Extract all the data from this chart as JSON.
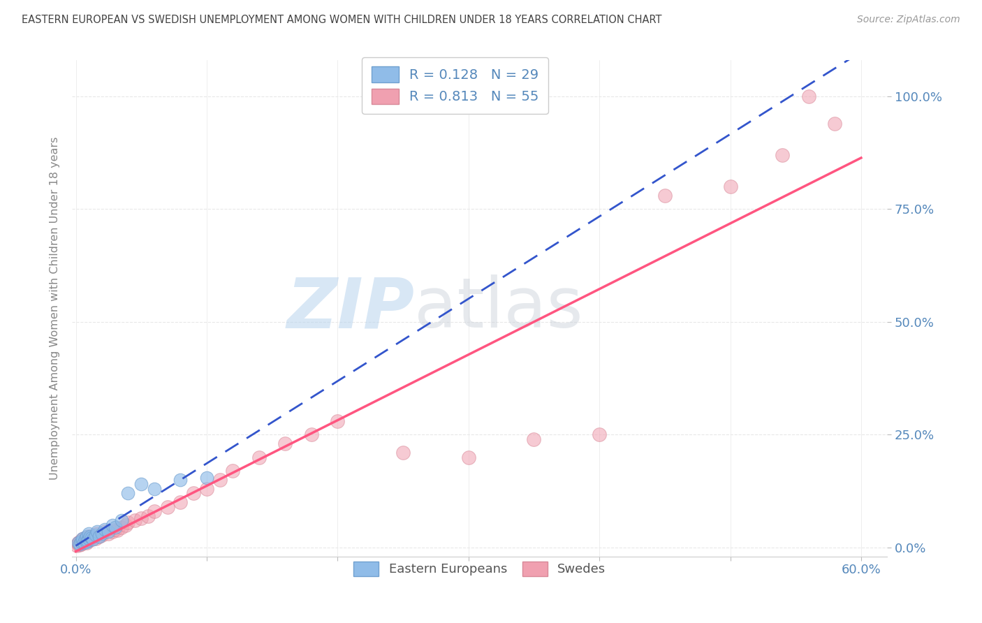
{
  "title": "EASTERN EUROPEAN VS SWEDISH UNEMPLOYMENT AMONG WOMEN WITH CHILDREN UNDER 18 YEARS CORRELATION CHART",
  "source": "Source: ZipAtlas.com",
  "ylabel": "Unemployment Among Women with Children Under 18 years",
  "xlim": [
    -0.003,
    0.62
  ],
  "ylim": [
    -0.02,
    1.08
  ],
  "xticks": [
    0.0,
    0.1,
    0.2,
    0.3,
    0.4,
    0.5,
    0.6
  ],
  "ytick_vals": [
    0.0,
    0.25,
    0.5,
    0.75,
    1.0
  ],
  "ytick_labels": [
    "0.0%",
    "25.0%",
    "50.0%",
    "75.0%",
    "100.0%"
  ],
  "R_eastern": 0.128,
  "N_eastern": 29,
  "R_swedes": 0.813,
  "N_swedes": 55,
  "eastern_european_color": "#90bce8",
  "eastern_european_edge": "#70a0d0",
  "swedes_color": "#f0a0b0",
  "swedes_edge": "#d88898",
  "eastern_european_line_color": "#3355cc",
  "swedes_line_color": "#ff5580",
  "background_color": "#ffffff",
  "grid_color": "#e8e8e8",
  "title_color": "#444444",
  "axis_label_color": "#5588bb",
  "ee_x": [
    0.002,
    0.003,
    0.004,
    0.005,
    0.005,
    0.006,
    0.007,
    0.008,
    0.008,
    0.009,
    0.01,
    0.01,
    0.011,
    0.012,
    0.013,
    0.015,
    0.016,
    0.018,
    0.02,
    0.022,
    0.025,
    0.028,
    0.03,
    0.035,
    0.04,
    0.05,
    0.06,
    0.08,
    0.1
  ],
  "ee_y": [
    0.01,
    0.008,
    0.012,
    0.015,
    0.02,
    0.01,
    0.018,
    0.012,
    0.025,
    0.015,
    0.02,
    0.03,
    0.025,
    0.022,
    0.018,
    0.028,
    0.035,
    0.025,
    0.03,
    0.04,
    0.035,
    0.05,
    0.045,
    0.06,
    0.12,
    0.14,
    0.13,
    0.15,
    0.155
  ],
  "sw_x": [
    0.001,
    0.002,
    0.002,
    0.003,
    0.003,
    0.004,
    0.004,
    0.005,
    0.005,
    0.006,
    0.006,
    0.007,
    0.008,
    0.008,
    0.009,
    0.01,
    0.01,
    0.011,
    0.012,
    0.013,
    0.015,
    0.016,
    0.018,
    0.02,
    0.022,
    0.025,
    0.028,
    0.03,
    0.032,
    0.035,
    0.038,
    0.04,
    0.045,
    0.05,
    0.055,
    0.06,
    0.07,
    0.08,
    0.09,
    0.1,
    0.11,
    0.12,
    0.14,
    0.16,
    0.18,
    0.2,
    0.25,
    0.3,
    0.35,
    0.4,
    0.45,
    0.5,
    0.54,
    0.56,
    0.58
  ],
  "sw_y": [
    0.005,
    0.008,
    0.01,
    0.006,
    0.012,
    0.008,
    0.015,
    0.01,
    0.018,
    0.012,
    0.02,
    0.015,
    0.01,
    0.022,
    0.018,
    0.015,
    0.025,
    0.02,
    0.018,
    0.025,
    0.02,
    0.03,
    0.025,
    0.028,
    0.035,
    0.03,
    0.035,
    0.04,
    0.038,
    0.045,
    0.05,
    0.055,
    0.06,
    0.065,
    0.07,
    0.08,
    0.09,
    0.1,
    0.12,
    0.13,
    0.15,
    0.17,
    0.2,
    0.23,
    0.25,
    0.28,
    0.21,
    0.2,
    0.24,
    0.25,
    0.78,
    0.8,
    0.87,
    1.0,
    0.94
  ]
}
